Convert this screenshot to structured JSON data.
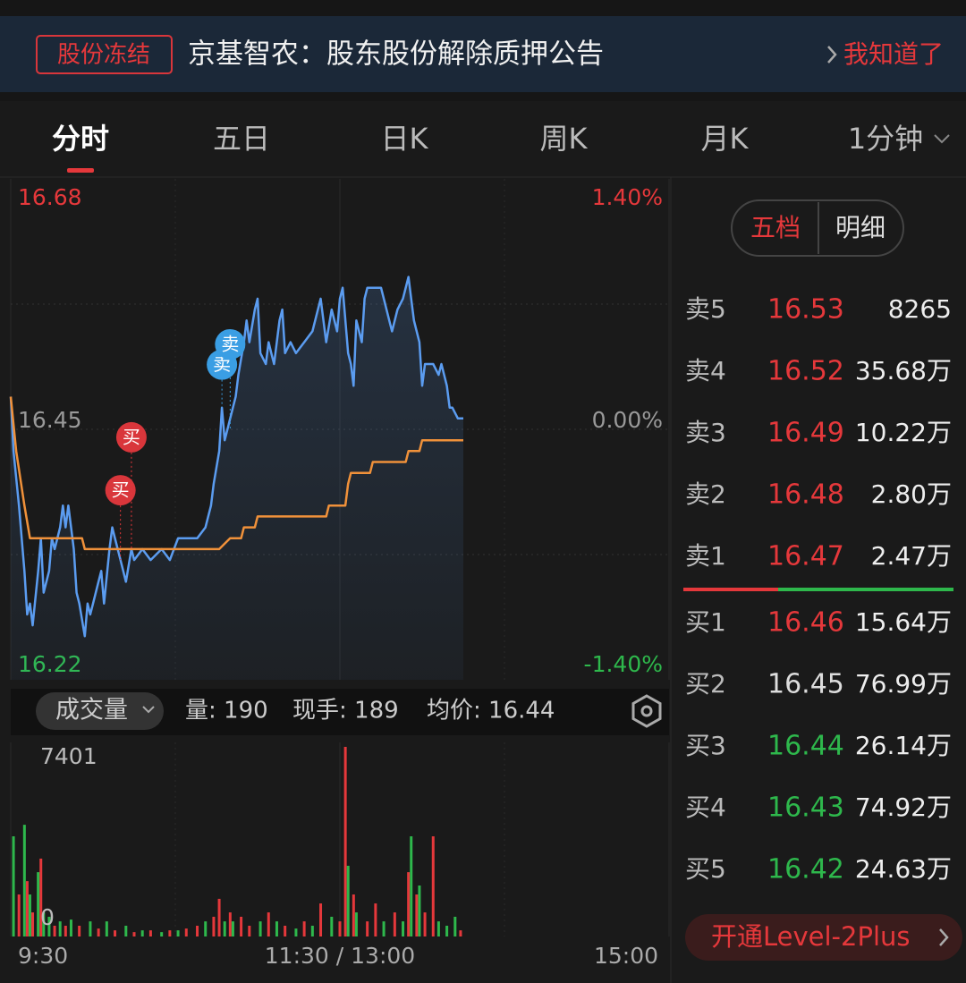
{
  "notice": {
    "tag": "股份冻结",
    "text": "京基智农：股东股份解除质押公告",
    "action": "我知道了"
  },
  "tabs": [
    "分时",
    "五日",
    "日K",
    "周K",
    "月K",
    "1分钟"
  ],
  "chart_data": [
    {
      "type": "line",
      "xlim": [
        0,
        240
      ],
      "xticks": [
        {
          "value": 0,
          "label": "9:30"
        },
        {
          "value": 120,
          "label": "11:30 / 13:00"
        },
        {
          "value": 240,
          "label": "15:00"
        }
      ],
      "ylim": [
        16.22,
        16.68
      ],
      "yticks": [
        16.22,
        16.45,
        16.68
      ],
      "y2lim": [
        -1.4,
        1.4
      ],
      "y2ticks": [
        {
          "value": -1.4,
          "label": "-1.40%"
        },
        {
          "value": 0,
          "label": "0.00%"
        },
        {
          "value": 1.4,
          "label": "1.40%"
        }
      ],
      "grid": true,
      "series": [
        {
          "color": "#5b9cf0",
          "x": [
            0,
            1,
            3,
            5,
            6,
            7,
            8,
            10,
            11,
            12,
            14,
            15,
            16,
            18,
            19,
            20,
            21,
            23,
            24,
            25,
            27,
            28,
            29,
            30,
            32,
            33,
            34,
            36,
            37,
            38,
            40,
            42,
            44,
            45,
            48,
            51,
            55,
            58,
            61,
            65,
            68,
            71,
            73,
            74,
            76,
            77,
            78,
            79,
            81,
            82,
            83,
            85,
            86,
            87,
            89,
            90,
            91,
            93,
            94,
            95,
            96,
            98,
            99,
            100,
            102,
            104,
            107,
            110,
            113,
            115,
            117,
            119,
            120,
            121,
            123,
            124,
            125,
            126,
            128,
            129,
            130,
            132,
            133,
            135,
            136,
            138,
            139,
            141,
            143,
            145,
            146,
            147,
            149,
            150,
            151,
            152,
            154,
            156,
            157,
            159,
            160,
            161,
            163,
            164,
            165
          ],
          "values": [
            16.48,
            16.43,
            16.38,
            16.32,
            16.28,
            16.29,
            16.27,
            16.32,
            16.35,
            16.3,
            16.32,
            16.35,
            16.34,
            16.36,
            16.38,
            16.36,
            16.38,
            16.34,
            16.3,
            16.29,
            16.26,
            16.29,
            16.28,
            16.29,
            16.31,
            16.32,
            16.29,
            16.34,
            16.36,
            16.35,
            16.33,
            16.31,
            16.34,
            16.33,
            16.34,
            16.33,
            16.34,
            16.33,
            16.35,
            16.35,
            16.35,
            16.36,
            16.38,
            16.4,
            16.43,
            16.47,
            16.44,
            16.45,
            16.47,
            16.48,
            16.5,
            16.53,
            16.55,
            16.53,
            16.56,
            16.57,
            16.52,
            16.51,
            16.53,
            16.52,
            16.51,
            16.55,
            16.56,
            16.52,
            16.53,
            16.52,
            16.53,
            16.54,
            16.57,
            16.53,
            16.56,
            16.54,
            16.57,
            16.58,
            16.52,
            16.51,
            16.49,
            16.55,
            16.53,
            16.57,
            16.58,
            16.58,
            16.58,
            16.58,
            16.57,
            16.55,
            16.54,
            16.56,
            16.57,
            16.59,
            16.57,
            16.55,
            16.53,
            16.49,
            16.51,
            16.51,
            16.51,
            16.5,
            16.51,
            16.49,
            16.47,
            16.47,
            16.46,
            16.46,
            16.46
          ]
        },
        {
          "color": "#f0913a",
          "x": [
            0,
            2,
            5,
            7,
            26,
            27,
            76,
            80,
            84,
            85,
            89,
            90,
            115,
            116,
            122,
            123,
            124,
            131,
            132,
            144,
            145,
            149,
            150,
            165
          ],
          "values": [
            16.48,
            16.43,
            16.38,
            16.35,
            16.35,
            16.34,
            16.34,
            16.35,
            16.35,
            16.36,
            16.36,
            16.37,
            16.37,
            16.38,
            16.38,
            16.4,
            16.41,
            16.41,
            16.42,
            16.42,
            16.43,
            16.43,
            16.44,
            16.44
          ]
        }
      ],
      "signals": [
        {
          "label": "买",
          "x": 40
        },
        {
          "label": "买",
          "x": 44
        },
        {
          "label": "卖",
          "x": 77
        },
        {
          "label": "卖",
          "x": 80
        }
      ]
    },
    {
      "type": "bar",
      "xlim": [
        0,
        240
      ],
      "ylim": [
        0,
        7401
      ],
      "yticks": [
        0,
        7401
      ],
      "x": [
        1,
        3,
        5,
        6,
        7,
        8,
        10,
        11,
        12,
        14,
        16,
        18,
        20,
        22,
        25,
        29,
        32,
        35,
        38,
        42,
        45,
        48,
        51,
        55,
        58,
        61,
        64,
        68,
        71,
        74,
        76,
        78,
        80,
        81,
        84,
        87,
        91,
        94,
        97,
        100,
        104,
        107,
        110,
        113,
        117,
        120,
        122,
        123,
        125,
        126,
        130,
        133,
        136,
        140,
        143,
        145,
        146,
        148,
        149,
        151,
        154,
        156,
        159,
        162,
        164
      ],
      "values": [
        3910,
        1640,
        4360,
        2160,
        1640,
        940,
        2510,
        3040,
        940,
        770,
        420,
        590,
        420,
        660,
        420,
        590,
        310,
        590,
        240,
        420,
        170,
        240,
        240,
        170,
        240,
        240,
        310,
        420,
        590,
        770,
        1470,
        590,
        940,
        590,
        770,
        420,
        590,
        940,
        590,
        420,
        310,
        590,
        420,
        1290,
        770,
        590,
        7401,
        2760,
        1640,
        940,
        590,
        1290,
        590,
        940,
        590,
        2510,
        3910,
        1640,
        1990,
        940,
        3910,
        590,
        420,
        770,
        240
      ],
      "colors": [
        "#2eb84c",
        "#e5383b",
        "#2eb84c",
        "#e5383b",
        "#2eb84c",
        "#e5383b",
        "#2eb84c",
        "#e5383b",
        "#2eb84c",
        "#2eb84c",
        "#e5383b",
        "#2eb84c",
        "#e5383b",
        "#2eb84c",
        "#e5383b",
        "#2eb84c",
        "#e5383b",
        "#2eb84c",
        "#e5383b",
        "#2eb84c",
        "#e5383b",
        "#2eb84c",
        "#e5383b",
        "#2eb84c",
        "#e5383b",
        "#2eb84c",
        "#e5383b",
        "#e5383b",
        "#2eb84c",
        "#e5383b",
        "#e5383b",
        "#2eb84c",
        "#e5383b",
        "#2eb84c",
        "#e5383b",
        "#e5383b",
        "#2eb84c",
        "#e5383b",
        "#2eb84c",
        "#e5383b",
        "#2eb84c",
        "#e5383b",
        "#2eb84c",
        "#e5383b",
        "#2eb84c",
        "#e5383b",
        "#e5383b",
        "#2eb84c",
        "#e5383b",
        "#2eb84c",
        "#e5383b",
        "#e5383b",
        "#2eb84c",
        "#e5383b",
        "#2eb84c",
        "#e5383b",
        "#2eb84c",
        "#e5383b",
        "#2eb84c",
        "#e5383b",
        "#e5383b",
        "#2eb84c",
        "#2eb84c",
        "#2eb84c",
        "#e5383b"
      ]
    }
  ],
  "volume_info": {
    "selector": "成交量",
    "volume": "量: 190",
    "hand": "现手: 189",
    "avg_price": "均价: 16.44"
  },
  "order_book": {
    "tabs": [
      "五档",
      "明细"
    ],
    "asks": [
      {
        "label": "卖5",
        "price": 16.53,
        "volume": 8265
      },
      {
        "label": "卖4",
        "price": 16.52,
        "volume": "35.68万"
      },
      {
        "label": "卖3",
        "price": 16.49,
        "volume": "10.22万"
      },
      {
        "label": "卖2",
        "price": 16.48,
        "volume": "2.80万"
      },
      {
        "label": "卖1",
        "price": 16.47,
        "volume": "2.47万"
      }
    ],
    "bids": [
      {
        "label": "买1",
        "price": 16.46,
        "volume": "15.64万"
      },
      {
        "label": "买2",
        "price": 16.45,
        "volume": "76.99万"
      },
      {
        "label": "买3",
        "price": 16.44,
        "volume": "26.14万"
      },
      {
        "label": "买4",
        "price": 16.43,
        "volume": "74.92万"
      },
      {
        "label": "买5",
        "price": 16.42,
        "volume": "24.63万"
      }
    ],
    "level2": "开通Level-2Plus"
  }
}
